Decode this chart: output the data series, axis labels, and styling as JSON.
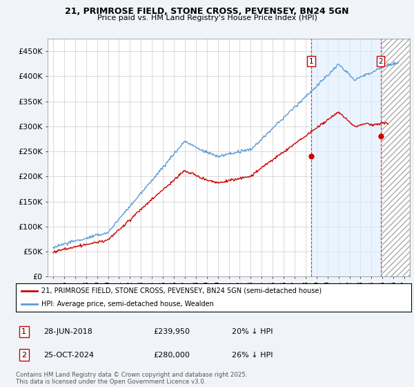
{
  "title": "21, PRIMROSE FIELD, STONE CROSS, PEVENSEY, BN24 5GN",
  "subtitle": "Price paid vs. HM Land Registry's House Price Index (HPI)",
  "legend_line1": "21, PRIMROSE FIELD, STONE CROSS, PEVENSEY, BN24 5GN (semi-detached house)",
  "legend_line2": "HPI: Average price, semi-detached house, Wealden",
  "footnote": "Contains HM Land Registry data © Crown copyright and database right 2025.\nThis data is licensed under the Open Government Licence v3.0.",
  "point1_label": "1",
  "point1_date": "28-JUN-2018",
  "point1_price": "£239,950",
  "point1_hpi": "20% ↓ HPI",
  "point2_label": "2",
  "point2_date": "25-OCT-2024",
  "point2_price": "£280,000",
  "point2_hpi": "26% ↓ HPI",
  "hpi_color": "#5b9bd5",
  "price_color": "#cc0000",
  "shade_color": "#ddeeff",
  "background_color": "#f0f4f8",
  "plot_bg_color": "#ffffff",
  "grid_color": "#cccccc",
  "ylim": [
    0,
    475000
  ],
  "yticks": [
    0,
    50000,
    100000,
    150000,
    200000,
    250000,
    300000,
    350000,
    400000,
    450000
  ],
  "ytick_labels": [
    "£0",
    "£50K",
    "£100K",
    "£150K",
    "£200K",
    "£250K",
    "£300K",
    "£350K",
    "£400K",
    "£450K"
  ],
  "xlim_start": 1994.5,
  "xlim_end": 2027.5,
  "point1_x": 2018.5,
  "point1_y": 239950,
  "point2_x": 2024.83,
  "point2_y": 280000,
  "shade_start": 2018.5,
  "shade_end": 2024.83,
  "hatch_start": 2025.0,
  "hatch_end": 2027.5
}
